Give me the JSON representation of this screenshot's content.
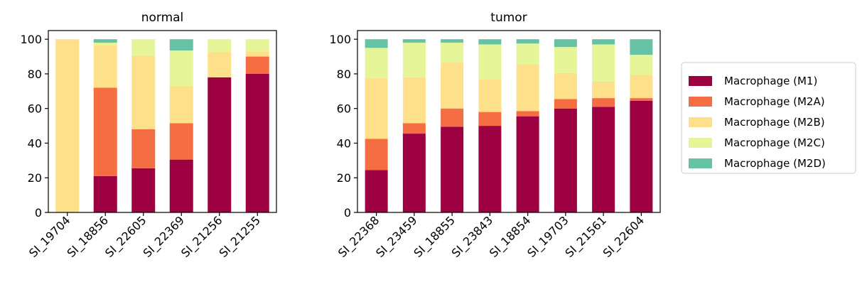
{
  "chart_data": [
    {
      "type": "bar",
      "stacked": true,
      "title": "normal",
      "xlabel": "",
      "ylabel": "",
      "ylim": [
        0,
        105
      ],
      "yticks": [
        "0",
        "20",
        "40",
        "60",
        "80",
        "100"
      ],
      "categories": [
        "SI_19704",
        "SI_18856",
        "SI_22605",
        "SI_22369",
        "SI_21256",
        "SI_21255"
      ],
      "series": [
        {
          "name": "Macrophage (M1)",
          "values": [
            0,
            21,
            25.5,
            30.5,
            78,
            80
          ]
        },
        {
          "name": "Macrophage (M2A)",
          "values": [
            0,
            51,
            22.5,
            21,
            0,
            10
          ]
        },
        {
          "name": "Macrophage (M2B)",
          "values": [
            100,
            24.5,
            42.5,
            21.5,
            14.5,
            3
          ]
        },
        {
          "name": "Macrophage (M2C)",
          "values": [
            0,
            1.5,
            9.5,
            20.5,
            7.5,
            7
          ]
        },
        {
          "name": "Macrophage (M2D)",
          "values": [
            0,
            2,
            0,
            6.5,
            0,
            0
          ]
        }
      ]
    },
    {
      "type": "bar",
      "stacked": true,
      "title": "tumor",
      "xlabel": "",
      "ylabel": "",
      "ylim": [
        0,
        105
      ],
      "yticks": [
        "0",
        "20",
        "40",
        "60",
        "80",
        "100"
      ],
      "categories": [
        "SI_22368",
        "SI_23459",
        "SI_18855",
        "SI_23843",
        "SI_18854",
        "SI_19703",
        "SI_21561",
        "SI_22604"
      ],
      "series": [
        {
          "name": "Macrophage (M1)",
          "values": [
            24.5,
            45.5,
            49.5,
            50,
            55.5,
            60,
            61,
            64.5
          ]
        },
        {
          "name": "Macrophage (M2A)",
          "values": [
            18,
            6,
            10.5,
            8,
            3,
            5.5,
            5,
            1.5
          ]
        },
        {
          "name": "Macrophage (M2B)",
          "values": [
            35,
            26.5,
            26.5,
            19,
            27,
            15,
            9.5,
            13.5
          ]
        },
        {
          "name": "Macrophage (M2C)",
          "values": [
            17.5,
            20,
            11.5,
            20,
            12,
            15,
            21.5,
            11.5
          ]
        },
        {
          "name": "Macrophage (M2D)",
          "values": [
            5,
            2,
            2,
            3,
            2.5,
            4.5,
            3,
            9
          ]
        }
      ]
    }
  ],
  "colors": [
    "#9e0142",
    "#f46d43",
    "#fee08b",
    "#e6f598",
    "#66c2a5"
  ],
  "legend": {
    "placement": "right",
    "entries": [
      "Macrophage (M1)",
      "Macrophage (M2A)",
      "Macrophage (M2B)",
      "Macrophage (M2C)",
      "Macrophage (M2D)"
    ]
  }
}
